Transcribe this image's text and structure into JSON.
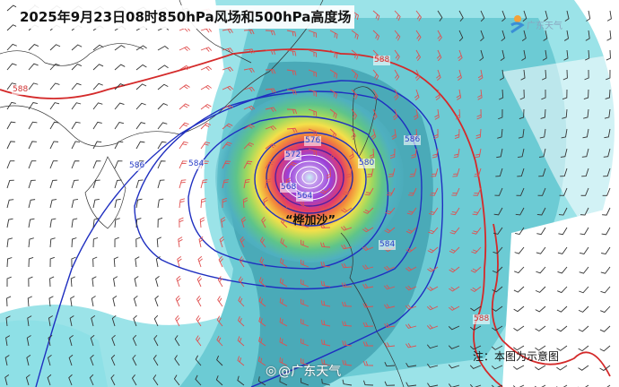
{
  "title": "2025年9月23日08时850hPa风场和500hPa高度场",
  "logo": {
    "text": "广东天气",
    "icon": "guangdong-weather-logo"
  },
  "typhoon_name": "“桦加沙”",
  "note": "注：本图为示意图",
  "watermark": {
    "icon": "weibo-icon",
    "text": "@广东天气"
  },
  "contour_labels": [
    {
      "value": "588",
      "color": "red"
    },
    {
      "value": "588",
      "color": "red"
    },
    {
      "value": "588",
      "color": "red"
    },
    {
      "value": "586",
      "color": "blue"
    },
    {
      "value": "586",
      "color": "blue"
    },
    {
      "value": "584",
      "color": "blue"
    },
    {
      "value": "584",
      "color": "blue"
    },
    {
      "value": "580",
      "color": "blue"
    },
    {
      "value": "576",
      "color": "blue"
    },
    {
      "value": "572",
      "color": "blue"
    },
    {
      "value": "568",
      "color": "blue"
    },
    {
      "value": "564",
      "color": "blue"
    }
  ],
  "colors": {
    "contour_588": "#d42a2a",
    "contour_other": "#1f2fc0",
    "wind_strong": "#e05050",
    "wind_weak": "#333333",
    "wind_shade_light": "#8ee0e6",
    "wind_shade_mid": "#4fb8c4",
    "typhoon_core": "#9a40d8"
  }
}
